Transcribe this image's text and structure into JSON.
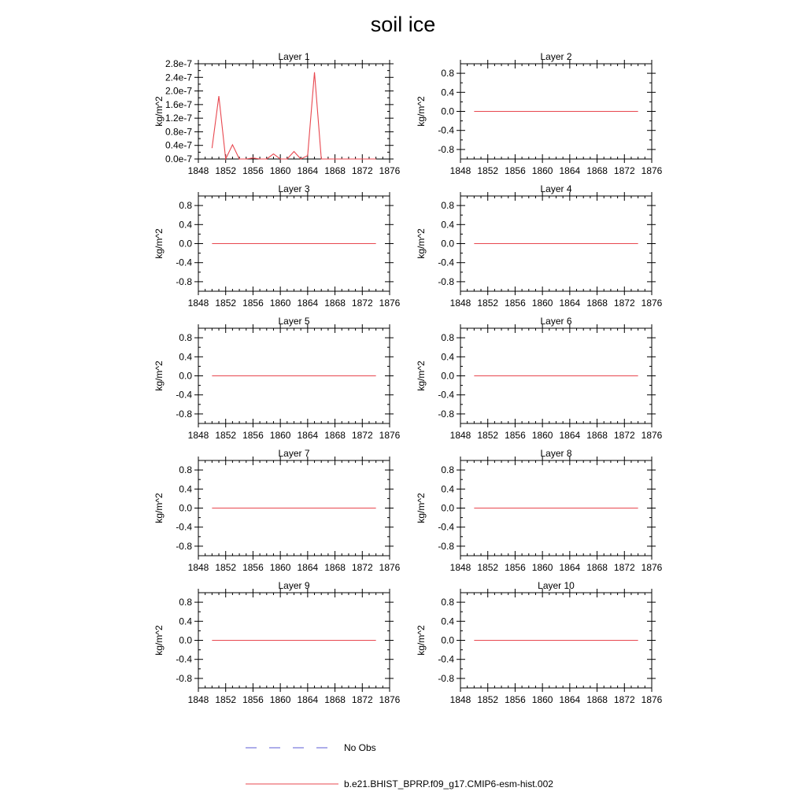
{
  "figure": {
    "title": "soil ice"
  },
  "legend": [
    {
      "label": "No Obs",
      "style": "dashed",
      "color": "#5b5bd6"
    },
    {
      "label": "b.e21.BHIST_BPRP.f09_g17.CMIP6-esm-hist.002",
      "style": "solid",
      "color": "#e8474f"
    }
  ],
  "chart_data": [
    {
      "type": "line",
      "title": "Layer 1",
      "ylabel": "kg/m^2",
      "xlim": [
        1848,
        1876
      ],
      "ylim": [
        0,
        2.8e-07
      ],
      "xticks": [
        1848,
        1852,
        1856,
        1860,
        1864,
        1868,
        1872,
        1876
      ],
      "yticks": [
        0,
        4e-08,
        8e-08,
        1.2e-07,
        1.6e-07,
        2e-07,
        2.4e-07,
        2.8e-07
      ],
      "ytick_labels": [
        "0.0e-7",
        "0.4e-7",
        "0.8e-7",
        "1.2e-7",
        "1.6e-7",
        "2.0e-7",
        "2.4e-7",
        "2.8e-7"
      ],
      "series": [
        {
          "color": "#e8474f",
          "x": [
            1850,
            1851,
            1852,
            1853,
            1854,
            1855,
            1856,
            1857,
            1858,
            1859,
            1860,
            1861,
            1862,
            1863,
            1864,
            1865,
            1866,
            1867,
            1868,
            1869,
            1870,
            1871,
            1872,
            1873,
            1874
          ],
          "y": [
            3.2e-08,
            1.85e-07,
            0,
            4.2e-08,
            0,
            0,
            3e-09,
            0,
            0,
            1.5e-08,
            0,
            0,
            2.2e-08,
            0,
            1e-08,
            2.55e-07,
            0,
            0,
            0,
            0,
            0,
            0,
            0,
            0,
            0
          ]
        }
      ]
    },
    {
      "type": "line",
      "title": "Layer 2",
      "ylabel": "kg/m^2",
      "xlim": [
        1848,
        1876
      ],
      "ylim": [
        -1,
        1
      ],
      "xticks": [
        1848,
        1852,
        1856,
        1860,
        1864,
        1868,
        1872,
        1876
      ],
      "yticks": [
        -0.8,
        -0.4,
        0,
        0.4,
        0.8
      ],
      "ytick_labels": [
        "-0.8",
        "-0.4",
        "0.0",
        "0.4",
        "0.8"
      ],
      "series": [
        {
          "color": "#e8474f",
          "x": [
            1850,
            1874
          ],
          "y": [
            0,
            0
          ]
        }
      ]
    },
    {
      "type": "line",
      "title": "Layer 3",
      "ylabel": "kg/m^2",
      "xlim": [
        1848,
        1876
      ],
      "ylim": [
        -1,
        1
      ],
      "xticks": [
        1848,
        1852,
        1856,
        1860,
        1864,
        1868,
        1872,
        1876
      ],
      "yticks": [
        -0.8,
        -0.4,
        0,
        0.4,
        0.8
      ],
      "ytick_labels": [
        "-0.8",
        "-0.4",
        "0.0",
        "0.4",
        "0.8"
      ],
      "series": [
        {
          "color": "#e8474f",
          "x": [
            1850,
            1874
          ],
          "y": [
            0,
            0
          ]
        }
      ]
    },
    {
      "type": "line",
      "title": "Layer 4",
      "ylabel": "kg/m^2",
      "xlim": [
        1848,
        1876
      ],
      "ylim": [
        -1,
        1
      ],
      "xticks": [
        1848,
        1852,
        1856,
        1860,
        1864,
        1868,
        1872,
        1876
      ],
      "yticks": [
        -0.8,
        -0.4,
        0,
        0.4,
        0.8
      ],
      "ytick_labels": [
        "-0.8",
        "-0.4",
        "0.0",
        "0.4",
        "0.8"
      ],
      "series": [
        {
          "color": "#e8474f",
          "x": [
            1850,
            1874
          ],
          "y": [
            0,
            0
          ]
        }
      ]
    },
    {
      "type": "line",
      "title": "Layer 5",
      "ylabel": "kg/m^2",
      "xlim": [
        1848,
        1876
      ],
      "ylim": [
        -1,
        1
      ],
      "xticks": [
        1848,
        1852,
        1856,
        1860,
        1864,
        1868,
        1872,
        1876
      ],
      "yticks": [
        -0.8,
        -0.4,
        0,
        0.4,
        0.8
      ],
      "ytick_labels": [
        "-0.8",
        "-0.4",
        "0.0",
        "0.4",
        "0.8"
      ],
      "series": [
        {
          "color": "#e8474f",
          "x": [
            1850,
            1874
          ],
          "y": [
            0,
            0
          ]
        }
      ]
    },
    {
      "type": "line",
      "title": "Layer 6",
      "ylabel": "kg/m^2",
      "xlim": [
        1848,
        1876
      ],
      "ylim": [
        -1,
        1
      ],
      "xticks": [
        1848,
        1852,
        1856,
        1860,
        1864,
        1868,
        1872,
        1876
      ],
      "yticks": [
        -0.8,
        -0.4,
        0,
        0.4,
        0.8
      ],
      "ytick_labels": [
        "-0.8",
        "-0.4",
        "0.0",
        "0.4",
        "0.8"
      ],
      "series": [
        {
          "color": "#e8474f",
          "x": [
            1850,
            1874
          ],
          "y": [
            0,
            0
          ]
        }
      ]
    },
    {
      "type": "line",
      "title": "Layer 7",
      "ylabel": "kg/m^2",
      "xlim": [
        1848,
        1876
      ],
      "ylim": [
        -1,
        1
      ],
      "xticks": [
        1848,
        1852,
        1856,
        1860,
        1864,
        1868,
        1872,
        1876
      ],
      "yticks": [
        -0.8,
        -0.4,
        0,
        0.4,
        0.8
      ],
      "ytick_labels": [
        "-0.8",
        "-0.4",
        "0.0",
        "0.4",
        "0.8"
      ],
      "series": [
        {
          "color": "#e8474f",
          "x": [
            1850,
            1874
          ],
          "y": [
            0,
            0
          ]
        }
      ]
    },
    {
      "type": "line",
      "title": "Layer 8",
      "ylabel": "kg/m^2",
      "xlim": [
        1848,
        1876
      ],
      "ylim": [
        -1,
        1
      ],
      "xticks": [
        1848,
        1852,
        1856,
        1860,
        1864,
        1868,
        1872,
        1876
      ],
      "yticks": [
        -0.8,
        -0.4,
        0,
        0.4,
        0.8
      ],
      "ytick_labels": [
        "-0.8",
        "-0.4",
        "0.0",
        "0.4",
        "0.8"
      ],
      "series": [
        {
          "color": "#e8474f",
          "x": [
            1850,
            1874
          ],
          "y": [
            0,
            0
          ]
        }
      ]
    },
    {
      "type": "line",
      "title": "Layer 9",
      "ylabel": "kg/m^2",
      "xlim": [
        1848,
        1876
      ],
      "ylim": [
        -1,
        1
      ],
      "xticks": [
        1848,
        1852,
        1856,
        1860,
        1864,
        1868,
        1872,
        1876
      ],
      "yticks": [
        -0.8,
        -0.4,
        0,
        0.4,
        0.8
      ],
      "ytick_labels": [
        "-0.8",
        "-0.4",
        "0.0",
        "0.4",
        "0.8"
      ],
      "series": [
        {
          "color": "#e8474f",
          "x": [
            1850,
            1874
          ],
          "y": [
            0,
            0
          ]
        }
      ]
    },
    {
      "type": "line",
      "title": "Layer 10",
      "ylabel": "kg/m^2",
      "xlim": [
        1848,
        1876
      ],
      "ylim": [
        -1,
        1
      ],
      "xticks": [
        1848,
        1852,
        1856,
        1860,
        1864,
        1868,
        1872,
        1876
      ],
      "yticks": [
        -0.8,
        -0.4,
        0,
        0.4,
        0.8
      ],
      "ytick_labels": [
        "-0.8",
        "-0.4",
        "0.0",
        "0.4",
        "0.8"
      ],
      "series": [
        {
          "color": "#e8474f",
          "x": [
            1850,
            1874
          ],
          "y": [
            0,
            0
          ]
        }
      ]
    }
  ]
}
